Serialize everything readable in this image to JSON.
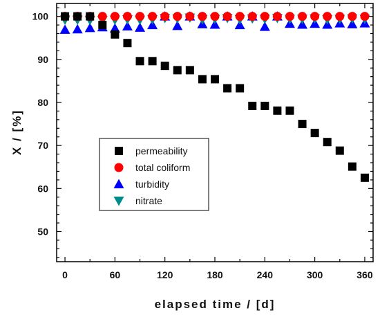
{
  "chart_data": {
    "type": "scatter",
    "title": "",
    "xlabel": "elapsed time / [d]",
    "ylabel": "X / [%]",
    "xlim": [
      -10,
      370
    ],
    "ylim": [
      43,
      103
    ],
    "xticks": [
      0,
      60,
      120,
      180,
      240,
      300,
      360
    ],
    "yticks": [
      50,
      60,
      70,
      80,
      90,
      100
    ],
    "xtick_labels": [
      "0",
      "60",
      "120",
      "180",
      "240",
      "300",
      "360"
    ],
    "ytick_labels": [
      "50",
      "60",
      "70",
      "80",
      "90",
      "100"
    ],
    "grid": false,
    "legend_position": "center-left",
    "series": [
      {
        "name": "permeability",
        "marker": "square",
        "color": "#000000",
        "x": [
          0,
          15,
          30,
          45,
          60,
          75,
          90,
          105,
          120,
          135,
          150,
          165,
          180,
          195,
          210,
          225,
          240,
          255,
          270,
          285,
          300,
          315,
          330,
          345,
          360
        ],
        "y": [
          100,
          100,
          100,
          98,
          95.8,
          93.8,
          89.6,
          89.6,
          88.5,
          87.5,
          87.5,
          85.4,
          85.4,
          83.3,
          83.3,
          79.2,
          79.2,
          78.1,
          78.1,
          75,
          72.9,
          70.8,
          68.8,
          65.1,
          62.5
        ]
      },
      {
        "name": "total coliform",
        "marker": "circle",
        "color": "#ff0000",
        "x": [
          0,
          15,
          30,
          45,
          60,
          75,
          90,
          105,
          120,
          135,
          150,
          165,
          180,
          195,
          210,
          225,
          240,
          255,
          270,
          285,
          300,
          315,
          330,
          345,
          360
        ],
        "y": [
          100,
          100,
          100,
          100,
          100,
          100,
          100,
          100,
          100,
          100,
          100,
          100,
          100,
          100,
          100,
          100,
          100,
          100,
          100,
          100,
          100,
          100,
          100,
          100,
          100
        ]
      },
      {
        "name": "turbidity",
        "marker": "triangle-up",
        "color": "#0000ff",
        "x": [
          0,
          15,
          30,
          45,
          60,
          75,
          90,
          105,
          120,
          135,
          150,
          165,
          180,
          195,
          210,
          225,
          240,
          255,
          270,
          285,
          300,
          315,
          330,
          345,
          360
        ],
        "y": [
          96.9,
          97,
          97.3,
          97.5,
          97.2,
          97.7,
          97.4,
          98,
          100,
          97.8,
          100,
          98.2,
          98.1,
          100,
          98,
          100,
          97.6,
          100,
          98.3,
          98.1,
          98.3,
          98.1,
          98.4,
          98.2,
          98.4
        ]
      },
      {
        "name": "nitrate",
        "marker": "triangle-down",
        "color": "#008b8b",
        "x": [
          0,
          15,
          30,
          45,
          60,
          75,
          90,
          105,
          120,
          135,
          150,
          165,
          180,
          195,
          210,
          225,
          240,
          255,
          270,
          285,
          300,
          315,
          330,
          345,
          360
        ],
        "y": [
          99.2,
          99.2,
          99.1,
          99.1,
          99.2,
          99.3,
          99.2,
          99.3,
          99.6,
          99.5,
          99.7,
          99.3,
          99.4,
          99.6,
          99.3,
          99.5,
          99.4,
          99.6,
          99.4,
          99.4,
          99.5,
          99.3,
          99.4,
          99.5,
          99.4
        ]
      }
    ]
  }
}
